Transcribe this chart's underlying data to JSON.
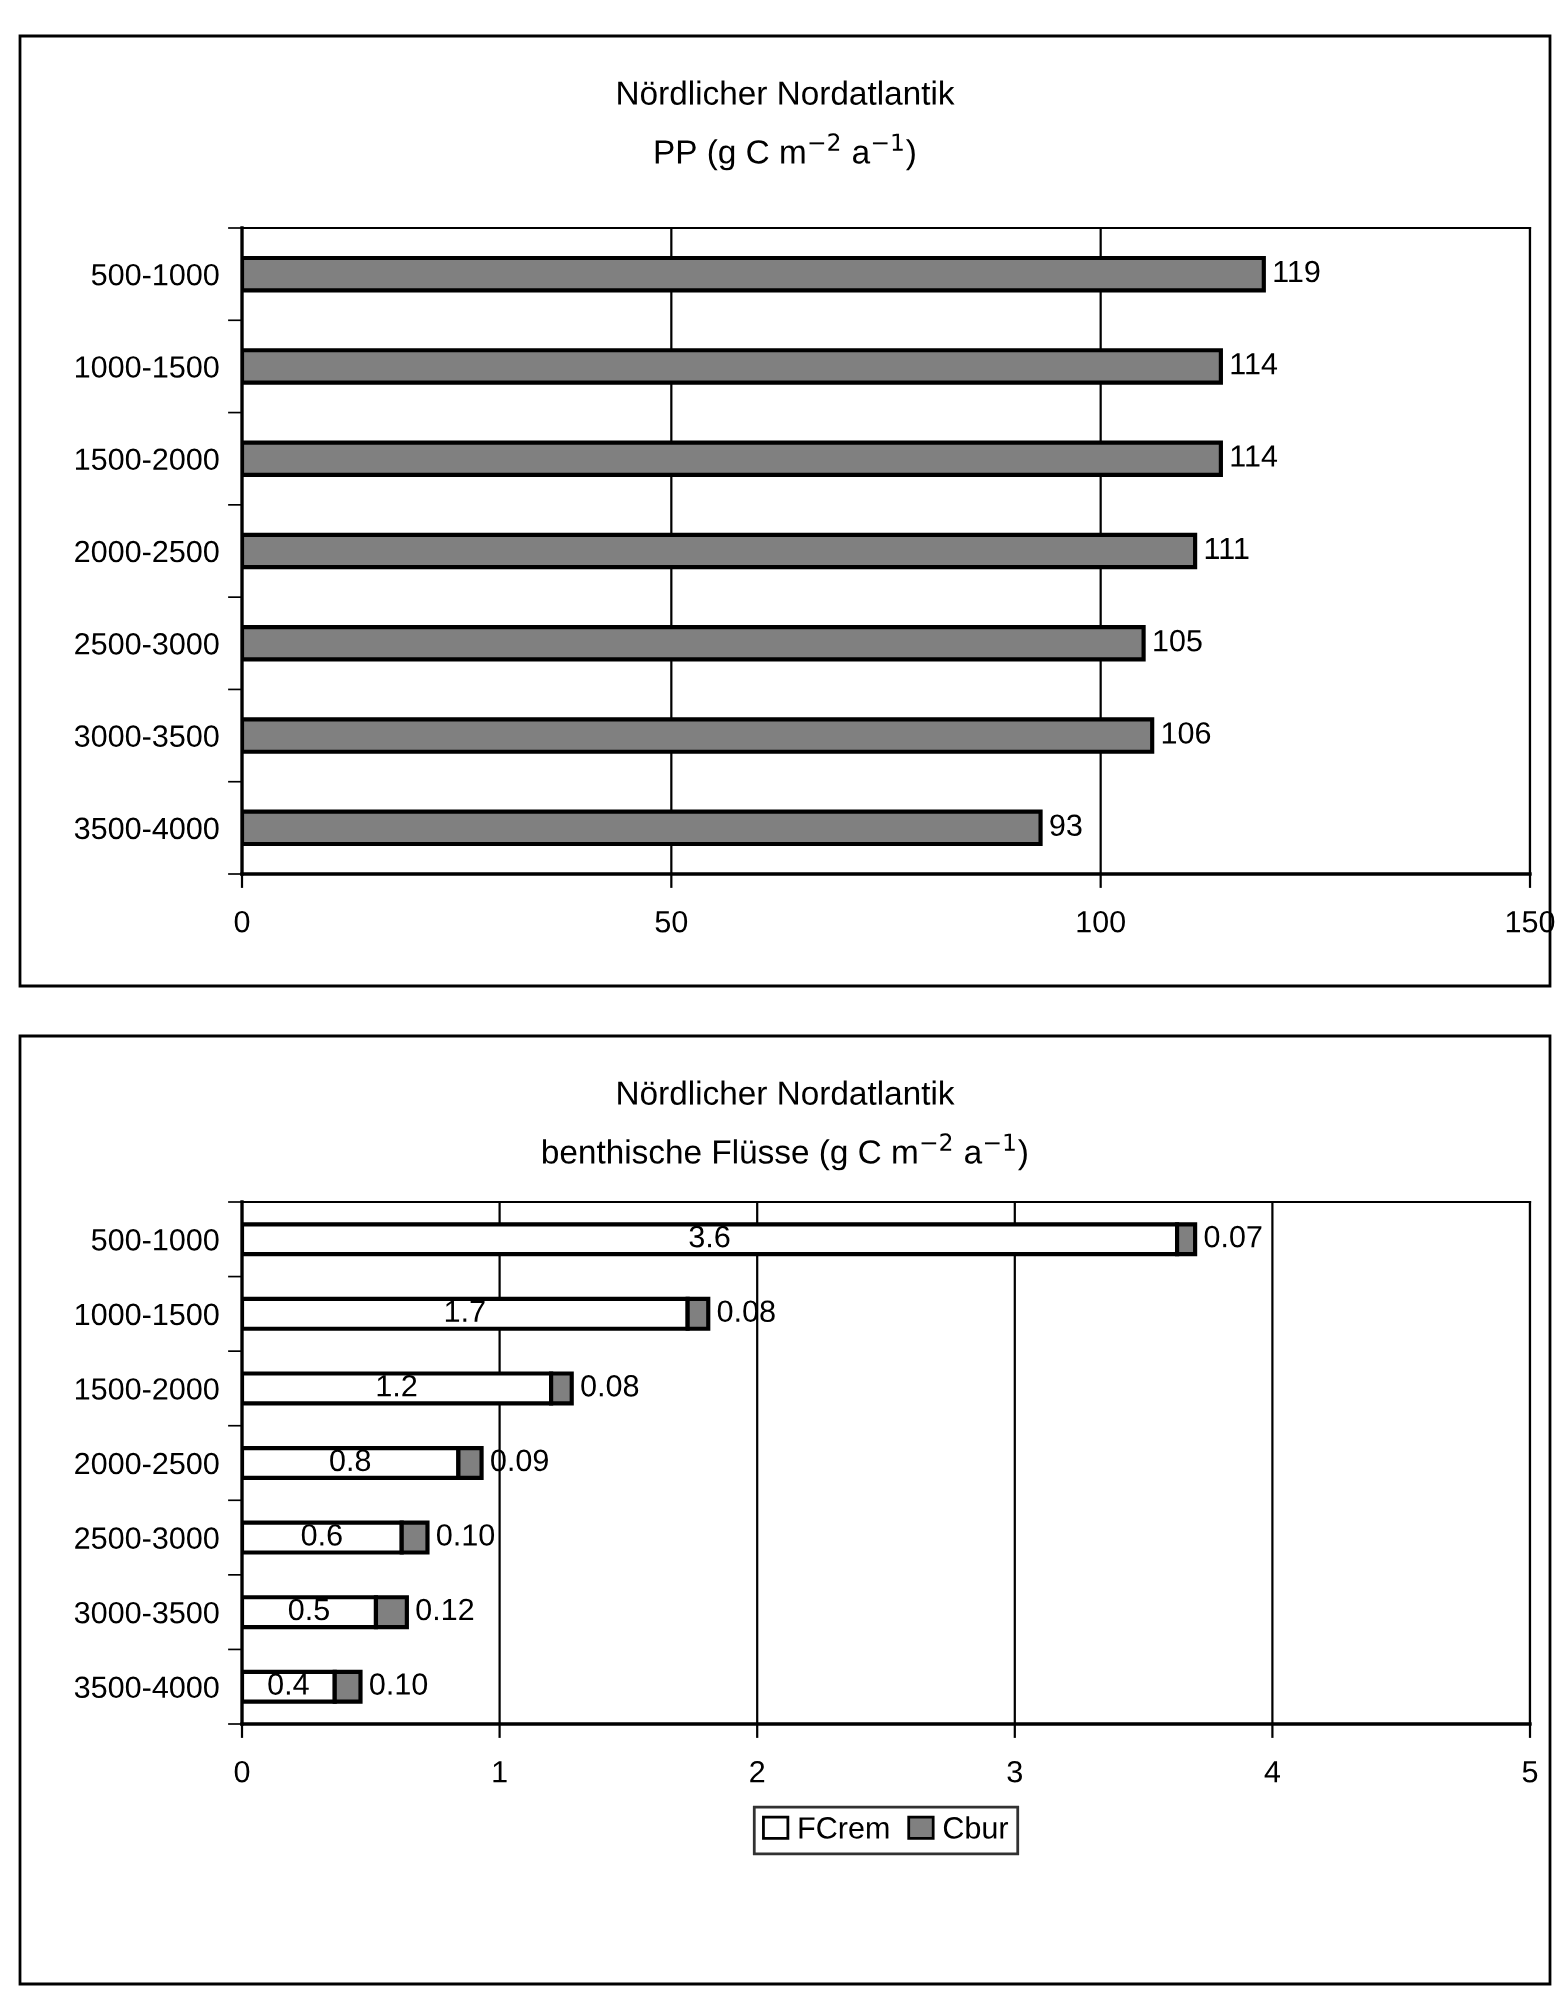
{
  "chart_data": [
    {
      "type": "bar",
      "orientation": "horizontal",
      "title": "Nördlicher Nordatlantik",
      "subtitle": "PP (g C m$^{−2}$ a$^{−1}$)",
      "categories": [
        "500-1000",
        "1000-1500",
        "1500-2000",
        "2000-2500",
        "2500-3000",
        "3000-3500",
        "3500-4000"
      ],
      "values": [
        119,
        114,
        114,
        111,
        105,
        106,
        93
      ],
      "color": "#808080",
      "data_labels": true,
      "xlim": [
        0,
        150
      ],
      "xticks": [
        0,
        50,
        100,
        150
      ],
      "grid": "x",
      "legend": false
    },
    {
      "type": "bar",
      "orientation": "horizontal",
      "stacked": true,
      "title": "Nördlicher Nordatlantik",
      "subtitle": "benthische Flüsse (g C m$^{−2}$ a$^{−1}$)",
      "categories": [
        "500-1000",
        "1000-1500",
        "1500-2000",
        "2000-2500",
        "2500-3000",
        "3000-3500",
        "3500-4000"
      ],
      "series": [
        {
          "name": "FCrem",
          "color": "#ffffff",
          "values": [
            3.63,
            1.73,
            1.2,
            0.84,
            0.62,
            0.52,
            0.36
          ],
          "value_labels": [
            "3.6",
            "1.7",
            "1.2",
            "0.8",
            "0.6",
            "0.5",
            "0.4"
          ]
        },
        {
          "name": "Cbur",
          "color": "#808080",
          "values": [
            0.07,
            0.08,
            0.08,
            0.09,
            0.1,
            0.12,
            0.1
          ],
          "value_labels": [
            "0.07",
            "0.08",
            "0.08",
            "0.09",
            "0.10",
            "0.12",
            "0.10"
          ]
        }
      ],
      "xlim": [
        0,
        5
      ],
      "xticks": [
        0,
        1,
        2,
        3,
        4,
        5
      ],
      "grid": "x",
      "legend": "bottom"
    }
  ]
}
